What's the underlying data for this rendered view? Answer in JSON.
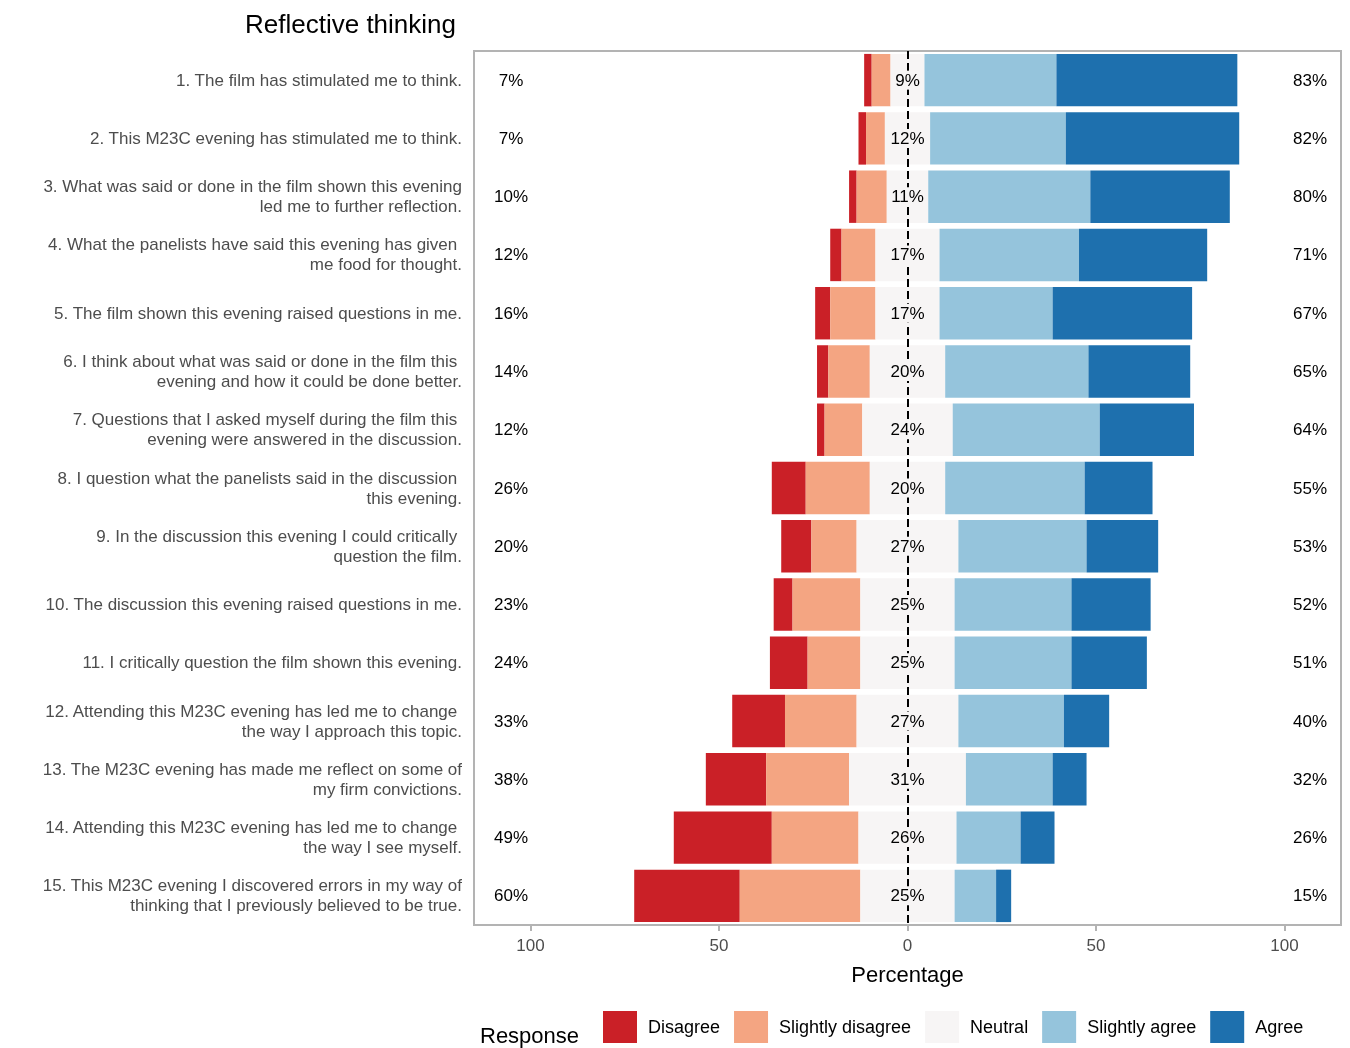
{
  "chart_data": {
    "type": "bar",
    "orientation": "horizontal",
    "title": "Reflective thinking",
    "xlabel": "Percentage",
    "legend_title": "Response",
    "legend": "bottom",
    "grid": false,
    "categories": [
      "1. The film has stimulated me to think.",
      "2. This M23C evening has stimulated me to think.",
      "3. What was said or done in the film shown this evening led me to further reflection.",
      "4. What the panelists have said this evening has given me food for thought.",
      "5. The film shown this evening raised questions in me.",
      "6. I think about what was said or done in the film this evening and how it could be done better.",
      "7. Questions that I asked myself during the film this evening were answered in the discussion.",
      "8. I question what the panelists said in the discussion this evening.",
      "9. In the discussion this evening I could critically question the film.",
      "10. The discussion this evening raised questions in me.",
      "11. I critically question the film shown this evening.",
      "12. Attending this M23C evening has led me to change the way I approach this topic.",
      "13. The M23C evening has made me reflect on some of my firm convictions.",
      "14. Attending this M23C evening has led me to change the way I see myself.",
      "15. This M23C evening I discovered errors in my way of thinking that I previously believed to be true."
    ],
    "xlim": [
      -115,
      115
    ],
    "xticks": [
      {
        "value": -100,
        "label": "100"
      },
      {
        "value": -50,
        "label": "50"
      },
      0,
      50,
      100
    ],
    "series": [
      {
        "name": "Disagree",
        "color": "#ca2027",
        "values": [
          2,
          2,
          2,
          3,
          4,
          3,
          2,
          9,
          8,
          5,
          10,
          14,
          16,
          26,
          28
        ],
        "base": [
          -11.5,
          -13,
          -15.5,
          -20.5,
          -24.5,
          -24,
          -24,
          -36,
          -33.5,
          -35.5,
          -36.5,
          -46.5,
          -53.5,
          -62,
          -72.5
        ]
      },
      {
        "name": "Slightly disagree",
        "color": "#f4a582",
        "values": [
          5,
          5,
          8,
          9,
          12,
          11,
          10,
          17,
          12,
          18,
          14,
          19,
          22,
          23,
          32
        ],
        "base": [
          -9.5,
          -11,
          -13.5,
          -17.5,
          -20.5,
          -21,
          -22,
          -27,
          -25.5,
          -30.5,
          -26.5,
          -32.5,
          -37.5,
          -36,
          -44.5
        ]
      },
      {
        "name": "Neutral",
        "color": "#f7f5f5",
        "values": [
          9,
          12,
          11,
          17,
          17,
          20,
          24,
          20,
          27,
          25,
          25,
          27,
          31,
          26,
          25
        ],
        "base": [
          -4.5,
          -6,
          -5.5,
          -8.5,
          -8.5,
          -10,
          -12,
          -10,
          -13.5,
          -12.5,
          -12.5,
          -13.5,
          -15.5,
          -13,
          -12.5
        ],
        "value_labels": [
          "9%",
          "12%",
          "11%",
          "17%",
          "17%",
          "20%",
          "24%",
          "20%",
          "27%",
          "25%",
          "25%",
          "27%",
          "31%",
          "26%",
          "25%"
        ]
      },
      {
        "name": "Slightly agree",
        "color": "#95c4dc",
        "values": [
          35,
          36,
          43,
          37,
          30,
          38,
          39,
          37,
          34,
          31,
          31,
          28,
          23,
          17,
          11
        ],
        "base": [
          4.5,
          6,
          5.5,
          8.5,
          8.5,
          10,
          12,
          10,
          13.5,
          12.5,
          12.5,
          13.5,
          15.5,
          13,
          12.5
        ]
      },
      {
        "name": "Agree",
        "color": "#1e70ae",
        "values": [
          48,
          46,
          37,
          34,
          37,
          27,
          25,
          18,
          19,
          21,
          20,
          12,
          9,
          9,
          4
        ],
        "base": [
          39.5,
          42,
          48.5,
          45.5,
          38.5,
          48,
          51,
          47,
          47.5,
          43.5,
          43.5,
          41.5,
          38.5,
          30,
          23.5
        ]
      }
    ],
    "ref_lines": [
      {
        "axis": "x",
        "value": 0,
        "color": "#000000",
        "line_style": "dashed"
      }
    ],
    "annotations": [
      "7%",
      "7%",
      "10%",
      "12%",
      "16%",
      "14%",
      "12%",
      "26%",
      "20%",
      "23%",
      "24%",
      "33%",
      "38%",
      "49%",
      "60%",
      "83%",
      "82%",
      "80%",
      "71%",
      "67%",
      "65%",
      "64%",
      "55%",
      "53%",
      "52%",
      "51%",
      "40%",
      "32%",
      "26%",
      "15%"
    ]
  }
}
